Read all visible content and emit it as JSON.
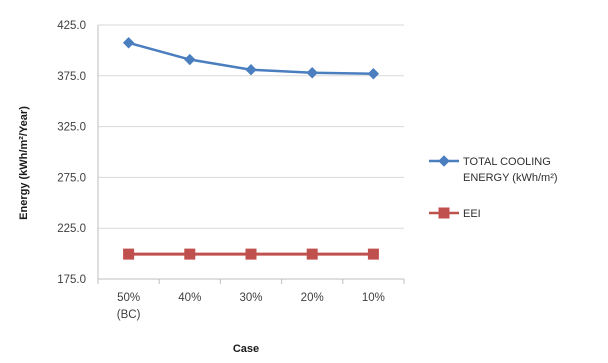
{
  "chart_data": {
    "type": "line",
    "title": "",
    "xlabel": "Case",
    "ylabel": "Energy (kWh/m²/Year)",
    "categories": [
      [
        "50%",
        "(BC)"
      ],
      [
        "40%"
      ],
      [
        "30%"
      ],
      [
        "20%"
      ],
      [
        "10%"
      ]
    ],
    "ylim": [
      175.0,
      425.0
    ],
    "yticks": [
      "425.0",
      "375.0",
      "325.0",
      "275.0",
      "225.0",
      "175.0"
    ],
    "grid": true,
    "legend_position": "right",
    "series": [
      {
        "name": [
          "TOTAL COOLING",
          "ENERGY (kWh/m²)"
        ],
        "values": [
          407.5,
          391.0,
          381.0,
          378.0,
          377.0
        ],
        "color": "#4a7ebf",
        "marker": "diamond"
      },
      {
        "name": [
          "EEI"
        ],
        "values": [
          199.5,
          199.5,
          199.5,
          199.5,
          199.5
        ],
        "color": "#c0504d",
        "marker": "square"
      }
    ]
  }
}
